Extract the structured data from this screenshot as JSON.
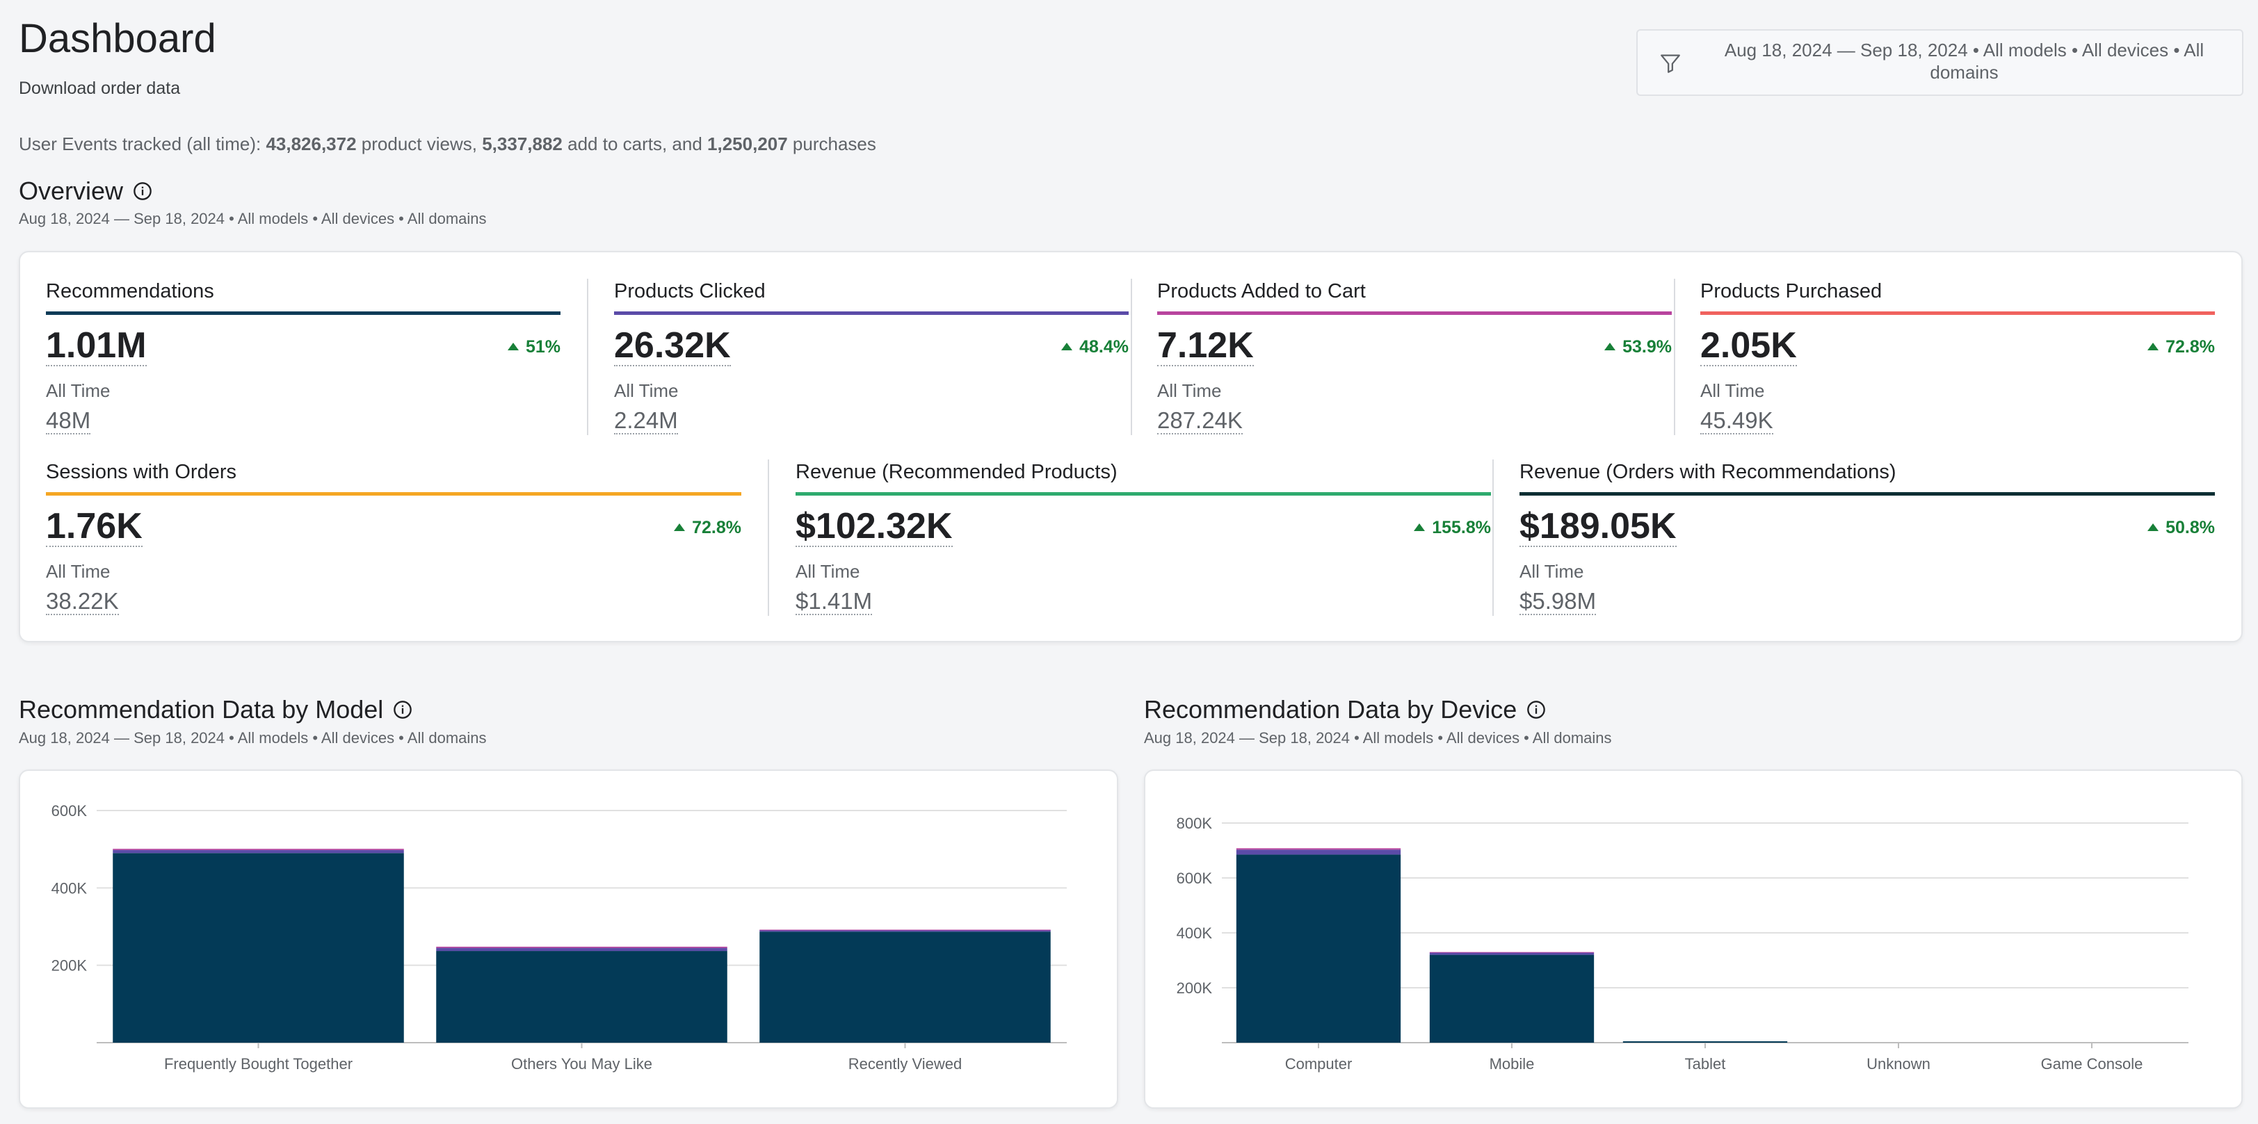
{
  "header": {
    "title": "Dashboard",
    "download_link": "Download order data",
    "filter_text": "Aug 18, 2024 — Sep 18, 2024 • All models • All devices • All domains"
  },
  "events": {
    "prefix": "User Events tracked (all time): ",
    "product_views": "43,826,372",
    "views_label": " product views, ",
    "add_to_carts": "5,337,882",
    "carts_label": " add to carts, and ",
    "purchases": "1,250,207",
    "purchases_label": " purchases"
  },
  "overview": {
    "title": "Overview",
    "subtitle": "Aug 18, 2024 — Sep 18, 2024 • All models • All devices • All domains",
    "metrics_row1": [
      {
        "label": "Recommendations",
        "value": "1.01M",
        "delta": "51%",
        "all_time_label": "All Time",
        "all_time": "48M",
        "color": "#0d3b57"
      },
      {
        "label": "Products Clicked",
        "value": "26.32K",
        "delta": "48.4%",
        "all_time_label": "All Time",
        "all_time": "2.24M",
        "color": "#5b4ba8"
      },
      {
        "label": "Products Added to Cart",
        "value": "7.12K",
        "delta": "53.9%",
        "all_time_label": "All Time",
        "all_time": "287.24K",
        "color": "#b8449e"
      },
      {
        "label": "Products Purchased",
        "value": "2.05K",
        "delta": "72.8%",
        "all_time_label": "All Time",
        "all_time": "45.49K",
        "color": "#f0625e"
      }
    ],
    "metrics_row2": [
      {
        "label": "Sessions with Orders",
        "value": "1.76K",
        "delta": "72.8%",
        "all_time_label": "All Time",
        "all_time": "38.22K",
        "color": "#f5a623"
      },
      {
        "label": "Revenue (Recommended Products)",
        "value": "$102.32K",
        "delta": "155.8%",
        "all_time_label": "All Time",
        "all_time": "$1.41M",
        "color": "#2eaa6e"
      },
      {
        "label": "Revenue (Orders with Recommendations)",
        "value": "$189.05K",
        "delta": "50.8%",
        "all_time_label": "All Time",
        "all_time": "$5.98M",
        "color": "#0b2e33"
      }
    ]
  },
  "model_section": {
    "title": "Recommendation Data by Model",
    "subtitle": "Aug 18, 2024 — Sep 18, 2024 • All models • All devices • All domains"
  },
  "device_section": {
    "title": "Recommendation Data by Device",
    "subtitle": "Aug 18, 2024 — Sep 18, 2024 • All models • All devices • All domains"
  },
  "chart_data": [
    {
      "type": "bar",
      "stacked": true,
      "title": "Recommendation Data by Model",
      "categories": [
        "Frequently Bought Together",
        "Others You May Like",
        "Recently Viewed"
      ],
      "series": [
        {
          "name": "Recommendations",
          "values": [
            490000,
            237000,
            287000
          ],
          "color": "#033a57"
        },
        {
          "name": "Products Clicked",
          "values": [
            8000,
            8000,
            4000
          ],
          "color": "#5b4ba8"
        },
        {
          "name": "Products Added to Cart",
          "values": [
            3000,
            3000,
            1000
          ],
          "color": "#b8449e"
        }
      ],
      "ylim": [
        0,
        600000
      ],
      "yticks": [
        200000,
        400000,
        600000
      ],
      "ytick_labels": [
        "200K",
        "400K",
        "600K"
      ],
      "grid": true
    },
    {
      "type": "bar",
      "stacked": true,
      "title": "Recommendation Data by Device",
      "categories": [
        "Computer",
        "Mobile",
        "Tablet",
        "Unknown",
        "Game Console"
      ],
      "series": [
        {
          "name": "Recommendations",
          "values": [
            685000,
            320000,
            5000,
            0,
            0
          ],
          "color": "#033a57"
        },
        {
          "name": "Products Clicked",
          "values": [
            18000,
            8000,
            0,
            0,
            0
          ],
          "color": "#5b4ba8"
        },
        {
          "name": "Products Added to Cart",
          "values": [
            5000,
            2000,
            0,
            0,
            0
          ],
          "color": "#b8449e"
        }
      ],
      "ylim": [
        0,
        800000
      ],
      "yticks": [
        200000,
        400000,
        600000,
        800000
      ],
      "ytick_labels": [
        "200K",
        "400K",
        "600K",
        "800K"
      ],
      "grid": true
    }
  ]
}
